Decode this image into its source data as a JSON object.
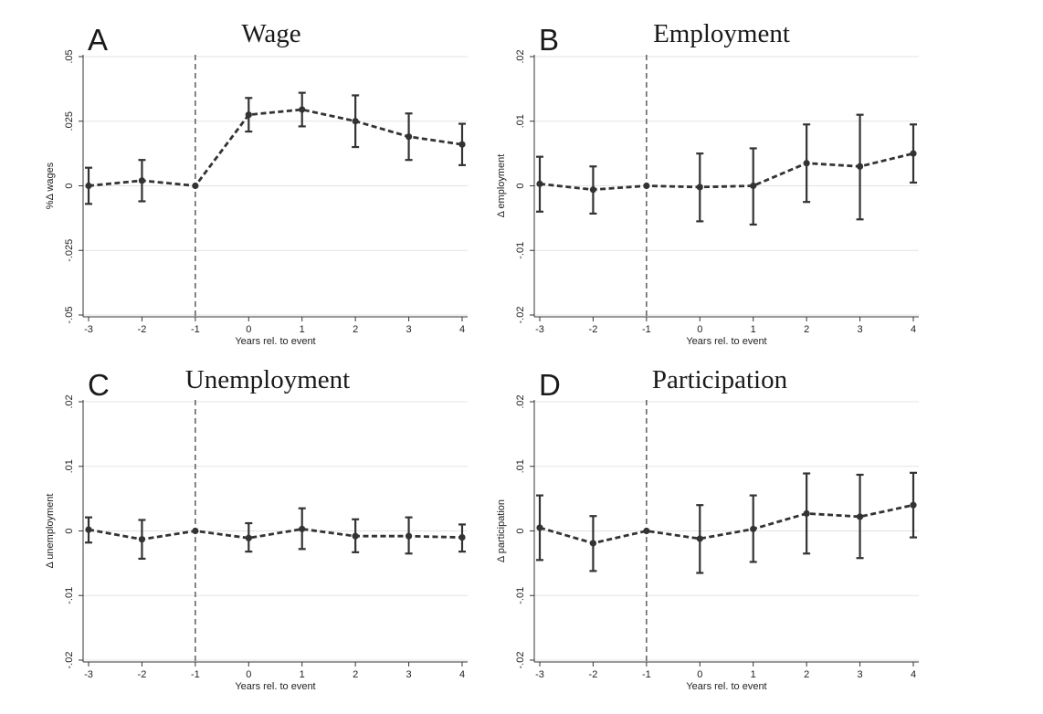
{
  "chart_data": [
    {
      "type": "line",
      "letter": "A",
      "title": "Wage",
      "xlabel": "Years rel. to event",
      "ylabel": "%Δ wages",
      "x": [
        -3,
        -2,
        -1,
        0,
        1,
        2,
        3,
        4
      ],
      "x_tick_labels": [
        "-3",
        "-2",
        "-1",
        "0",
        "1",
        "2",
        "3",
        "4"
      ],
      "xlim": [
        -3,
        4
      ],
      "ylim": [
        -0.05,
        0.05
      ],
      "y_ticks": [
        -0.05,
        -0.025,
        0,
        0.025,
        0.05
      ],
      "y_tick_labels": [
        "-.05",
        "-.025",
        "0",
        ".025",
        ".05"
      ],
      "series": [
        {
          "values": [
            0.0,
            0.002,
            0.0,
            0.0275,
            0.0295,
            0.025,
            0.019,
            0.016
          ],
          "ci_low": [
            -0.007,
            -0.006,
            null,
            0.021,
            0.023,
            0.015,
            0.01,
            0.008
          ],
          "ci_high": [
            0.007,
            0.01,
            null,
            0.034,
            0.036,
            0.035,
            0.028,
            0.024
          ]
        }
      ],
      "reference_line_x": -1,
      "grid": true
    },
    {
      "type": "line",
      "letter": "B",
      "title": "Employment",
      "xlabel": "Years rel. to event",
      "ylabel": "Δ employment",
      "x": [
        -3,
        -2,
        -1,
        0,
        1,
        2,
        3,
        4
      ],
      "x_tick_labels": [
        "-3",
        "-2",
        "-1",
        "0",
        "1",
        "2",
        "3",
        "4"
      ],
      "xlim": [
        -3,
        4
      ],
      "ylim": [
        -0.02,
        0.02
      ],
      "y_ticks": [
        -0.02,
        -0.01,
        0,
        0.01,
        0.02
      ],
      "y_tick_labels": [
        "-.02",
        "-.01",
        "0",
        ".01",
        ".02"
      ],
      "series": [
        {
          "values": [
            0.0003,
            -0.0006,
            0.0,
            -0.0002,
            0.0,
            0.0035,
            0.003,
            0.005
          ],
          "ci_low": [
            -0.004,
            -0.0043,
            null,
            -0.0055,
            -0.006,
            -0.0025,
            -0.0052,
            0.0005
          ],
          "ci_high": [
            0.0045,
            0.003,
            null,
            0.005,
            0.0058,
            0.0095,
            0.011,
            0.0095
          ]
        }
      ],
      "reference_line_x": -1,
      "grid": true
    },
    {
      "type": "line",
      "letter": "C",
      "title": "Unemployment",
      "xlabel": "Years rel. to event",
      "ylabel": "Δ unemployment",
      "x": [
        -3,
        -2,
        -1,
        0,
        1,
        2,
        3,
        4
      ],
      "x_tick_labels": [
        "-3",
        "-2",
        "-1",
        "0",
        "1",
        "2",
        "3",
        "4"
      ],
      "xlim": [
        -3,
        4
      ],
      "ylim": [
        -0.02,
        0.02
      ],
      "y_ticks": [
        -0.02,
        -0.01,
        0,
        0.01,
        0.02
      ],
      "y_tick_labels": [
        "-.02",
        "-.01",
        "0",
        ".01",
        ".02"
      ],
      "series": [
        {
          "values": [
            0.0002,
            -0.0013,
            0.0,
            -0.0011,
            0.0003,
            -0.0008,
            -0.0008,
            -0.001
          ],
          "ci_low": [
            -0.0018,
            -0.0043,
            null,
            -0.0032,
            -0.0028,
            -0.0033,
            -0.0035,
            -0.0032
          ],
          "ci_high": [
            0.0021,
            0.0017,
            null,
            0.0012,
            0.0035,
            0.0018,
            0.0021,
            0.001
          ]
        }
      ],
      "reference_line_x": -1,
      "grid": true
    },
    {
      "type": "line",
      "letter": "D",
      "title": "Participation",
      "xlabel": "Years rel. to event",
      "ylabel": "Δ participation",
      "x": [
        -3,
        -2,
        -1,
        0,
        1,
        2,
        3,
        4
      ],
      "x_tick_labels": [
        "-3",
        "-2",
        "-1",
        "0",
        "1",
        "2",
        "3",
        "4"
      ],
      "xlim": [
        -3,
        4
      ],
      "ylim": [
        -0.02,
        0.02
      ],
      "y_ticks": [
        -0.02,
        -0.01,
        0,
        0.01,
        0.02
      ],
      "y_tick_labels": [
        "-.02",
        "-.01",
        "0",
        ".01",
        ".02"
      ],
      "series": [
        {
          "values": [
            0.0005,
            -0.0019,
            0.0,
            -0.0012,
            0.0003,
            0.0027,
            0.0022,
            0.004
          ],
          "ci_low": [
            -0.0045,
            -0.0062,
            null,
            -0.0065,
            -0.0048,
            -0.0035,
            -0.0042,
            -0.001
          ],
          "ci_high": [
            0.0055,
            0.0023,
            null,
            0.004,
            0.0055,
            0.0089,
            0.0087,
            0.009
          ]
        }
      ],
      "reference_line_x": -1,
      "grid": true
    }
  ],
  "colors": {
    "line": "#333333",
    "grid": "#e3e3e3",
    "axis": "#333333",
    "reference_line": "#444444"
  }
}
